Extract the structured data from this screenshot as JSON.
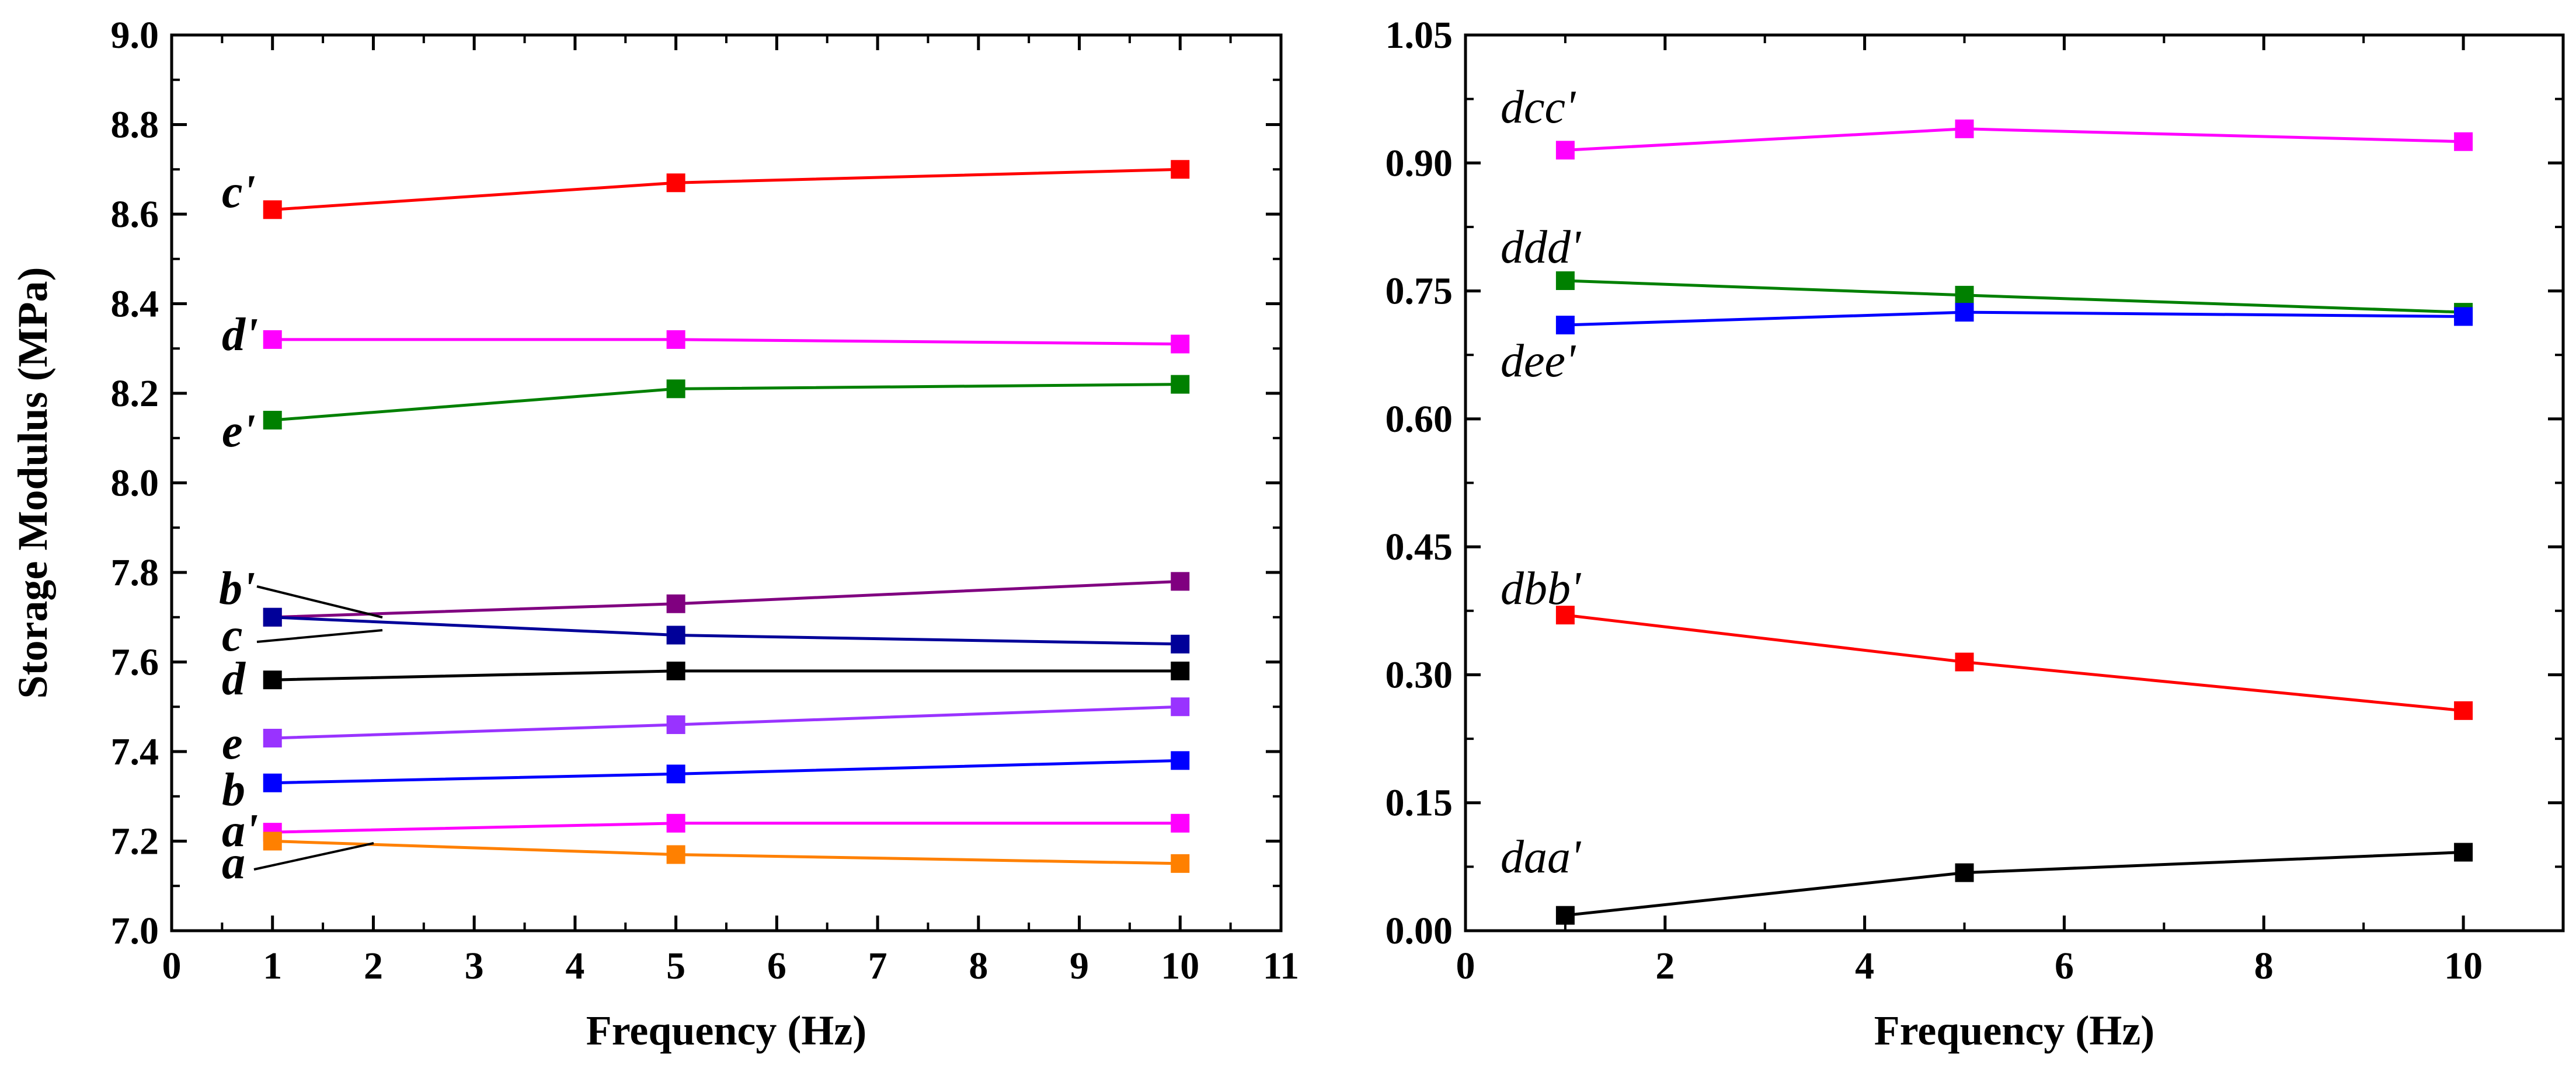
{
  "chart_data": [
    {
      "type": "line",
      "title": "",
      "xlabel": "Frequency (Hz)",
      "ylabel": "Storage Modulus (MPa)",
      "xlim": [
        0,
        11
      ],
      "ylim": [
        7.0,
        9.0
      ],
      "xticks": [
        "0",
        "1",
        "2",
        "3",
        "4",
        "5",
        "6",
        "7",
        "8",
        "9",
        "10",
        "11"
      ],
      "yticks": [
        "7.0",
        "7.2",
        "7.4",
        "7.6",
        "7.8",
        "8.0",
        "8.2",
        "8.4",
        "8.6",
        "8.8",
        "9.0"
      ],
      "x": [
        1,
        5,
        10
      ],
      "series": [
        {
          "name": "c'",
          "color": "#ff0000",
          "values": [
            8.61,
            8.67,
            8.7
          ]
        },
        {
          "name": "d'",
          "color": "#ff00ff",
          "values": [
            8.32,
            8.32,
            8.31
          ]
        },
        {
          "name": "e'",
          "color": "#008000",
          "values": [
            8.14,
            8.21,
            8.22
          ]
        },
        {
          "name": "b'",
          "color": "#800080",
          "values": [
            7.7,
            7.73,
            7.78
          ]
        },
        {
          "name": "c",
          "color": "#000099",
          "values": [
            7.7,
            7.66,
            7.64
          ]
        },
        {
          "name": "d",
          "color": "#000000",
          "values": [
            7.56,
            7.58,
            7.58
          ]
        },
        {
          "name": "e",
          "color": "#9933ff",
          "values": [
            7.43,
            7.46,
            7.5
          ]
        },
        {
          "name": "b",
          "color": "#0000ff",
          "values": [
            7.33,
            7.35,
            7.38
          ]
        },
        {
          "name": "a'",
          "color": "#ff00ff",
          "values": [
            7.22,
            7.24,
            7.24
          ]
        },
        {
          "name": "a",
          "color": "#ff8000",
          "values": [
            7.2,
            7.17,
            7.15
          ]
        }
      ]
    },
    {
      "type": "line",
      "title": "",
      "xlabel": "Frequency (Hz)",
      "ylabel": "",
      "xlim": [
        0,
        11
      ],
      "ylim": [
        0.0,
        1.05
      ],
      "xticks": [
        "0",
        "2",
        "4",
        "6",
        "8",
        "10"
      ],
      "yticks": [
        "0.00",
        "0.15",
        "0.30",
        "0.45",
        "0.60",
        "0.75",
        "0.90",
        "1.05"
      ],
      "x": [
        1,
        5,
        10
      ],
      "series": [
        {
          "name": "dcc'",
          "color": "#ff00ff",
          "values": [
            0.915,
            0.94,
            0.925
          ]
        },
        {
          "name": "ddd'",
          "color": "#008000",
          "values": [
            0.762,
            0.745,
            0.725
          ]
        },
        {
          "name": "dee'",
          "color": "#0000ff",
          "values": [
            0.71,
            0.725,
            0.72
          ]
        },
        {
          "name": "dbb'",
          "color": "#ff0000",
          "values": [
            0.37,
            0.315,
            0.258
          ]
        },
        {
          "name": "daa'",
          "color": "#000000",
          "values": [
            0.018,
            0.068,
            0.092
          ]
        }
      ]
    }
  ]
}
